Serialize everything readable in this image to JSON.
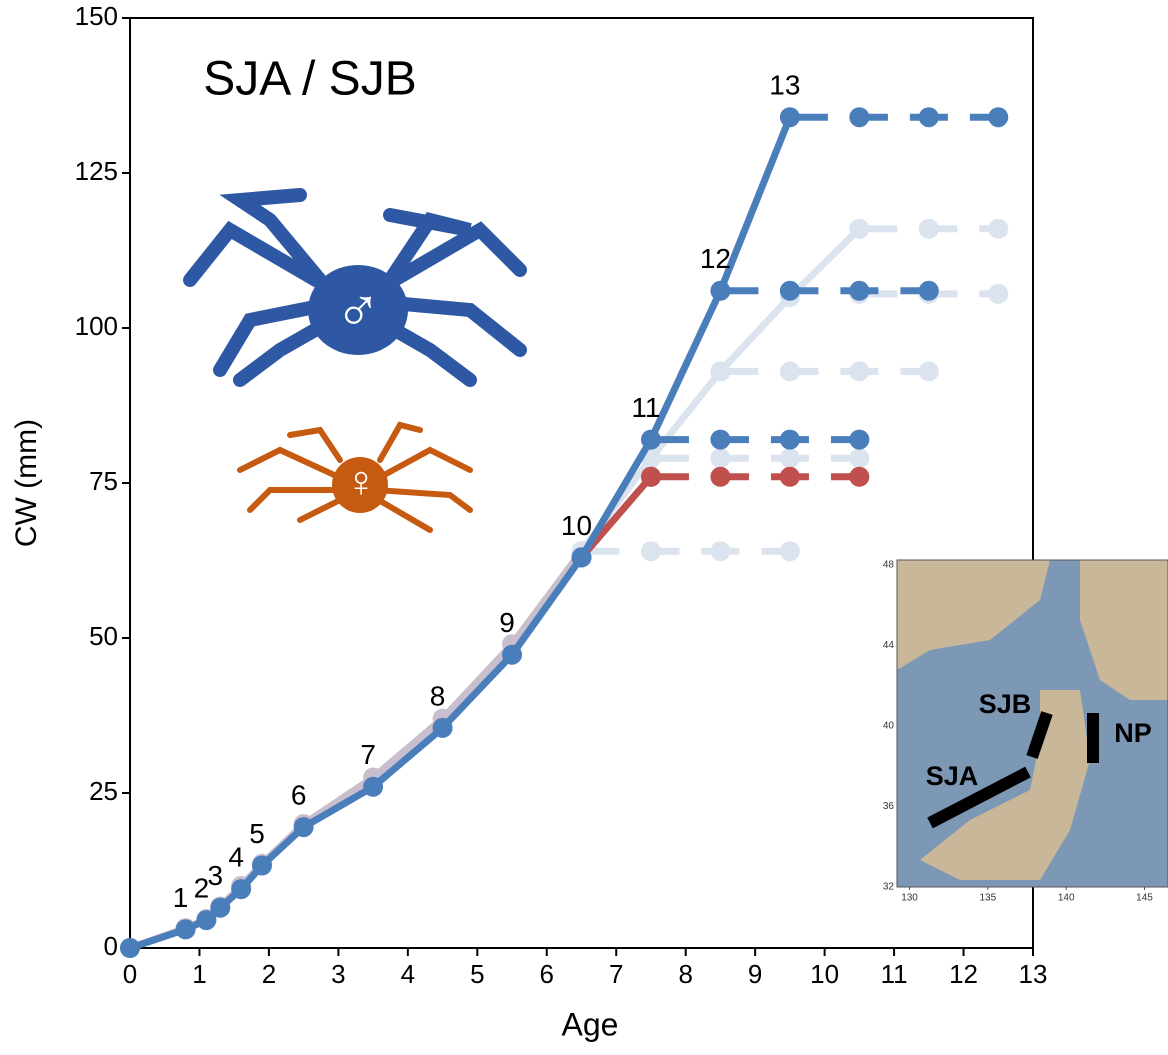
{
  "chart_data": {
    "type": "line",
    "title": "SJA / SJB",
    "x_label": "Age",
    "y_label": "CW (mm)",
    "xlim": [
      0,
      13
    ],
    "ylim": [
      0,
      150
    ],
    "xticks": [
      0,
      1,
      2,
      3,
      4,
      5,
      6,
      7,
      8,
      9,
      10,
      11,
      12,
      13
    ],
    "yticks": [
      0,
      25,
      50,
      75,
      100,
      125,
      150
    ],
    "grid": false,
    "male_symbol": "♂",
    "female_symbol": "♀",
    "series": [
      {
        "x": [
          0,
          0.8,
          1.1,
          1.3,
          1.6,
          1.9,
          2.5,
          3.5,
          4.5,
          5.5,
          6.5
        ],
        "values": [
          0,
          3.2,
          4.7,
          6.7,
          10,
          13.6,
          20,
          27.5,
          37,
          49,
          64
        ],
        "color": "#bcaec2",
        "dashed": false,
        "opacity": 0.8
      },
      {
        "x": [
          6.5,
          7.5,
          8.5,
          9.5,
          10.5
        ],
        "values": [
          64,
          79,
          93,
          105,
          116
        ],
        "color": "#dbe3ef",
        "dashed": false,
        "opacity": 1
      },
      {
        "x": [
          6.5,
          7.5,
          8.5,
          9.5
        ],
        "values": [
          64,
          64,
          64,
          64
        ],
        "color": "#dbe3ef",
        "dashed": true,
        "opacity": 1
      },
      {
        "x": [
          7.5,
          8.5,
          9.5,
          10.5
        ],
        "values": [
          79,
          79,
          79,
          79
        ],
        "color": "#dbe3ef",
        "dashed": true,
        "opacity": 1
      },
      {
        "x": [
          8.5,
          9.5,
          10.5,
          11.5
        ],
        "values": [
          93,
          93,
          93,
          93
        ],
        "color": "#dbe3ef",
        "dashed": true,
        "opacity": 1
      },
      {
        "x": [
          10.5,
          11.5,
          12.5
        ],
        "values": [
          105.5,
          105.5,
          105.5
        ],
        "color": "#dbe3ef",
        "dashed": true,
        "opacity": 1
      },
      {
        "x": [
          10.5,
          11.5,
          12.5
        ],
        "values": [
          116,
          116,
          116
        ],
        "color": "#dbe3ef",
        "dashed": true,
        "opacity": 1
      },
      {
        "x": [
          6.5,
          7.5
        ],
        "values": [
          63,
          76
        ],
        "color": "#c0504d",
        "dashed": false,
        "opacity": 1
      },
      {
        "x": [
          7.5,
          8.5,
          9.5,
          10.5
        ],
        "values": [
          76,
          76,
          76,
          76
        ],
        "color": "#c0504d",
        "dashed": true,
        "opacity": 1
      },
      {
        "x": [
          7.5,
          8.5,
          9.5,
          10.5
        ],
        "values": [
          82,
          82,
          82,
          82
        ],
        "color": "#4a7ebb",
        "dashed": true,
        "opacity": 1
      },
      {
        "x": [
          8.5,
          9.5,
          10.5,
          11.5
        ],
        "values": [
          106,
          106,
          106,
          106
        ],
        "color": "#4a7ebb",
        "dashed": true,
        "opacity": 1
      },
      {
        "x": [
          9.5,
          10.5,
          11.5,
          12.5
        ],
        "values": [
          134,
          134,
          134,
          134
        ],
        "color": "#4a7ebb",
        "dashed": true,
        "opacity": 1
      },
      {
        "x": [
          0,
          0.8,
          1.1,
          1.3,
          1.6,
          1.9,
          2.5,
          3.5,
          4.5,
          5.5,
          6.5,
          7.5,
          8.5,
          9.5
        ],
        "values": [
          0,
          3,
          4.5,
          6.5,
          9.5,
          13.3,
          19.5,
          26,
          35.5,
          47.3,
          63,
          82,
          106,
          134
        ],
        "color": "#4a7ebb",
        "dashed": false,
        "opacity": 1
      }
    ],
    "molt_labels": [
      "1",
      "2",
      "3",
      "4",
      "5",
      "6",
      "7",
      "8",
      "9",
      "10",
      "11",
      "12",
      "13"
    ],
    "inset": {
      "xlim": [
        129.2,
        146.5
      ],
      "ylim": [
        32,
        48
      ],
      "xticks": [
        130,
        135,
        140,
        145
      ],
      "yticks": [
        32,
        36,
        40,
        44,
        48
      ],
      "labels": [
        "SJA",
        "SJB",
        "NP"
      ]
    }
  }
}
